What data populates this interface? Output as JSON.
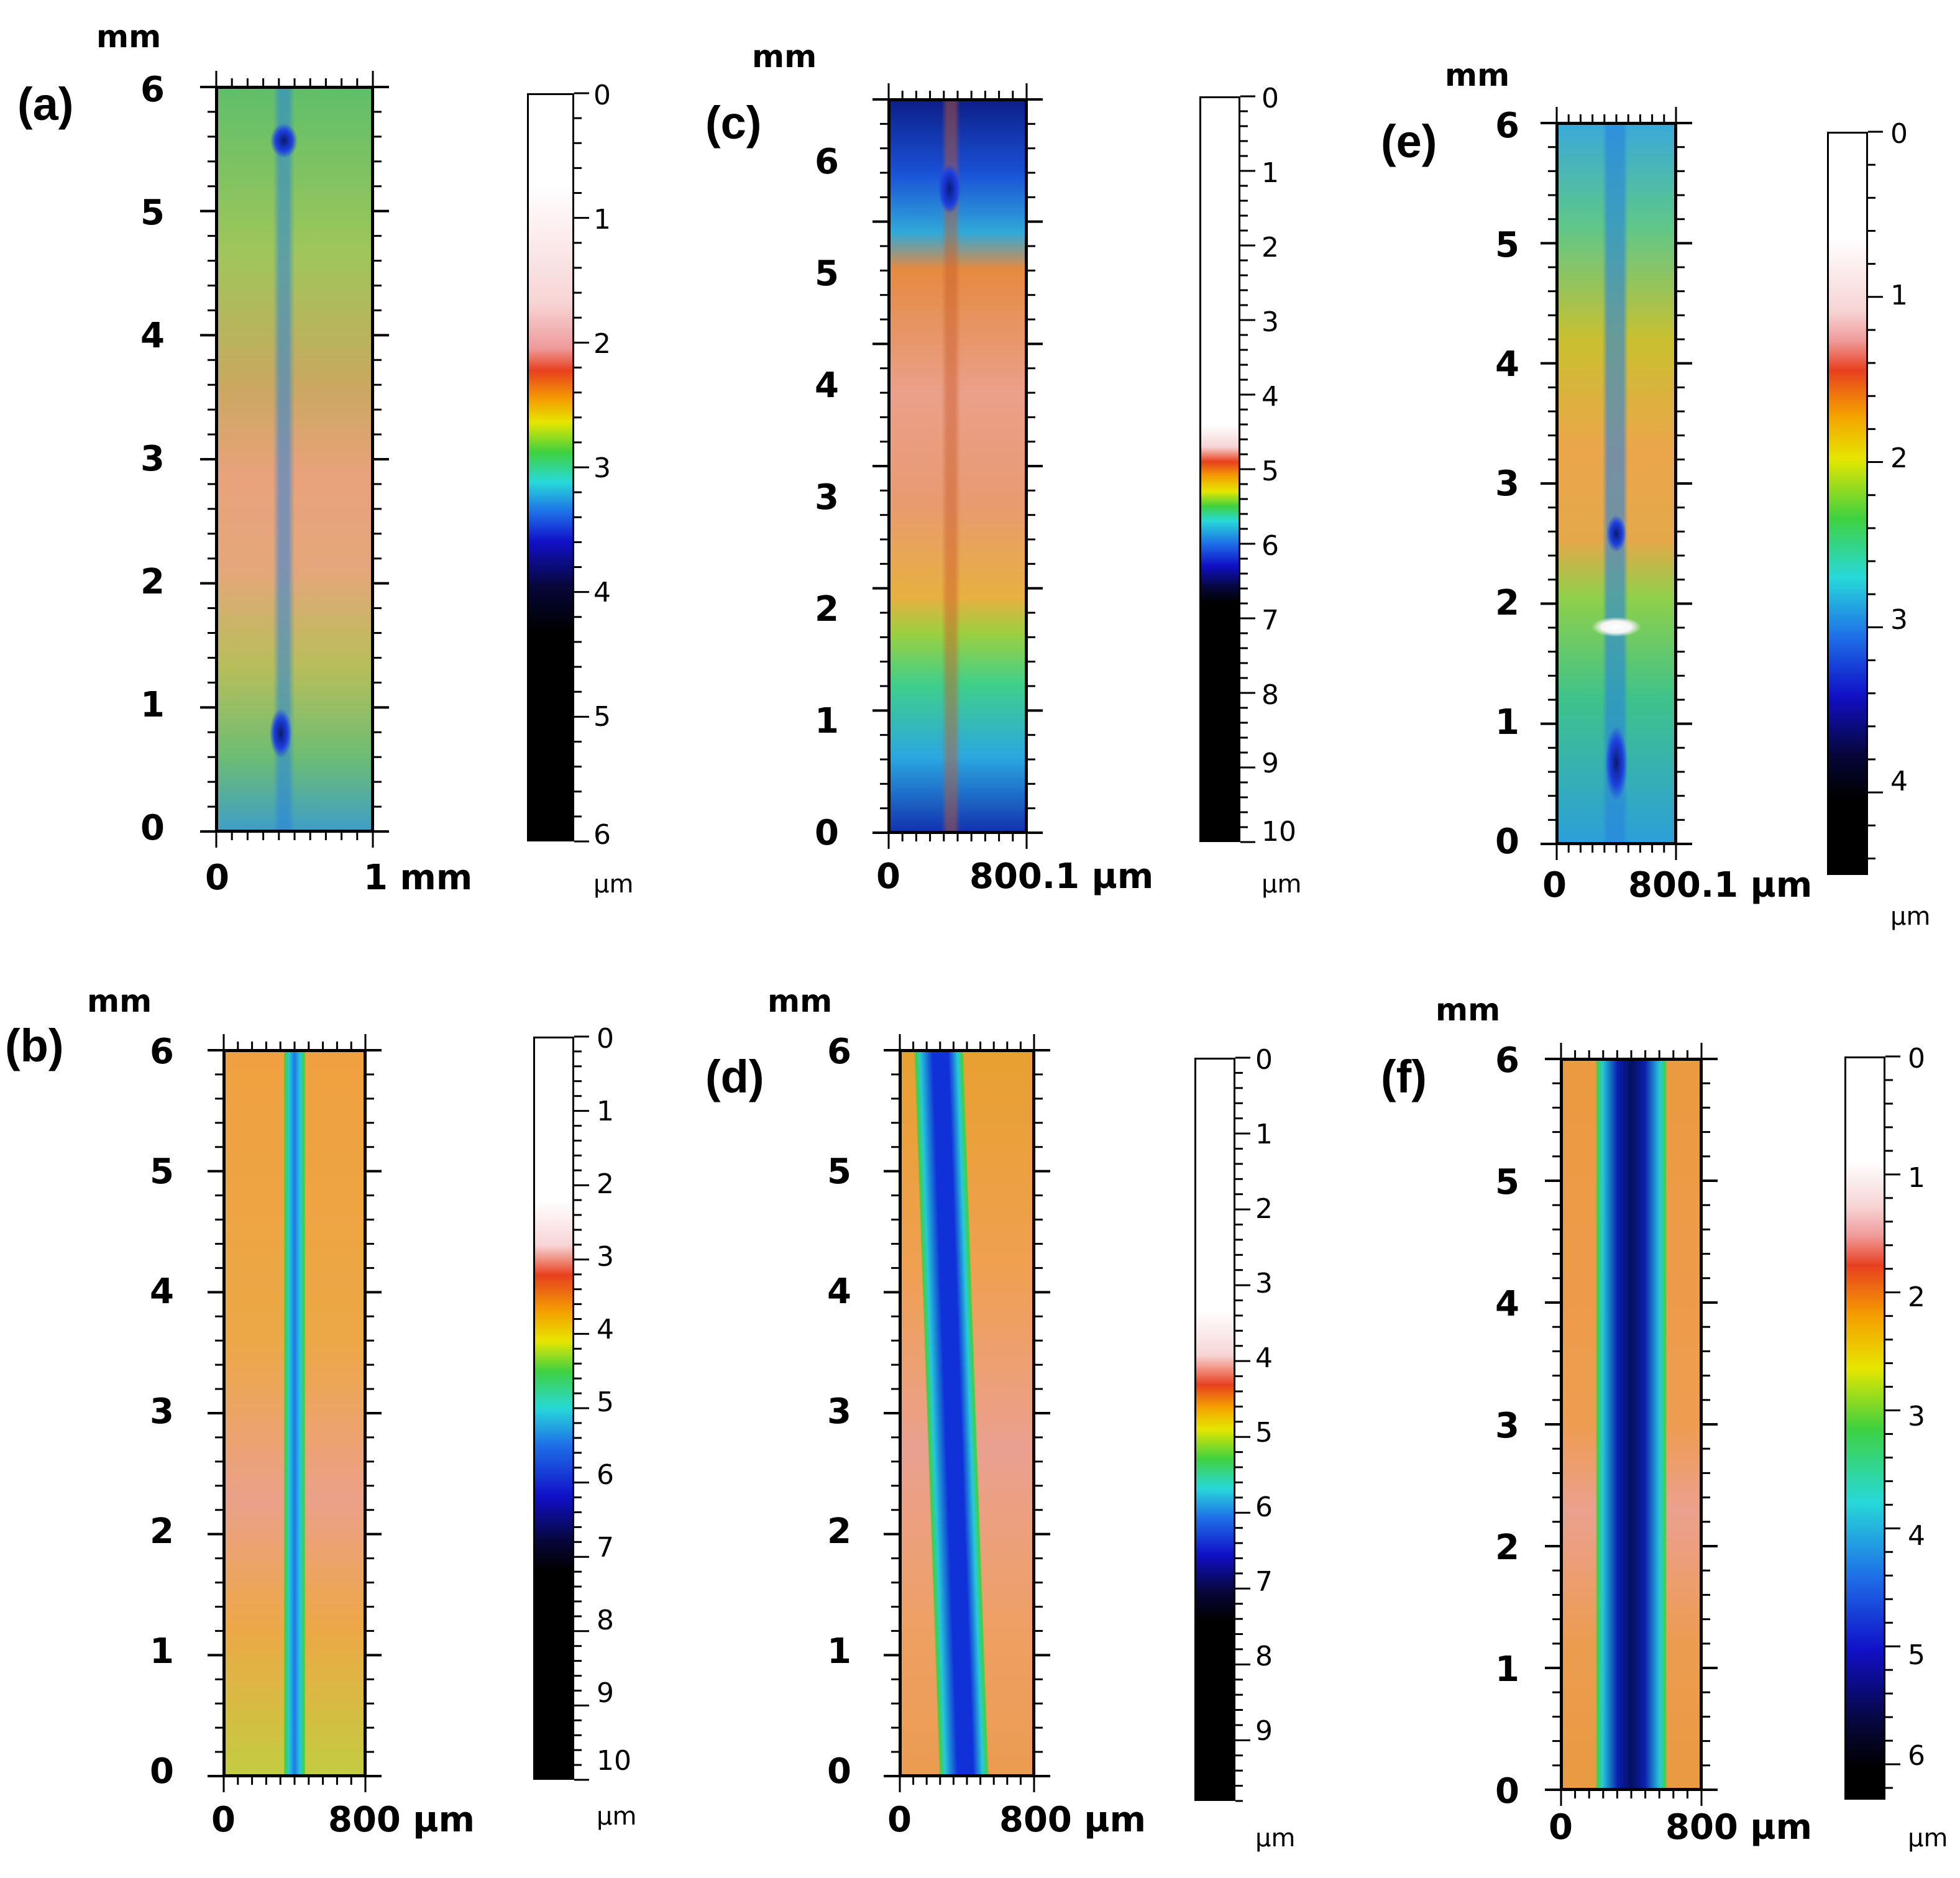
{
  "figure": {
    "panels": [
      {
        "label": "(a)",
        "y_unit": "mm",
        "y_ticks": [
          "6",
          "5",
          "4",
          "3",
          "2",
          "1",
          "0"
        ],
        "x_ticks": [
          "0",
          "1 mm"
        ],
        "colorbar_ticks": [
          "0",
          "1",
          "2",
          "3",
          "4",
          "5",
          "6"
        ],
        "colorbar_unit": "µm"
      },
      {
        "label": "(b)",
        "y_unit": "mm",
        "y_ticks": [
          "6",
          "5",
          "4",
          "3",
          "2",
          "1",
          "0"
        ],
        "x_ticks": [
          "0",
          "800 µm"
        ],
        "colorbar_ticks": [
          "0",
          "1",
          "2",
          "3",
          "4",
          "5",
          "6",
          "7",
          "8",
          "9",
          "10"
        ],
        "colorbar_unit": "µm"
      },
      {
        "label": "(c)",
        "y_unit": "mm",
        "y_ticks": [
          "6",
          "5",
          "4",
          "3",
          "2",
          "1",
          "0"
        ],
        "x_ticks": [
          "0",
          "800.1 µm"
        ],
        "colorbar_ticks": [
          "0",
          "1",
          "2",
          "3",
          "4",
          "5",
          "6",
          "7",
          "8",
          "9",
          "10"
        ],
        "colorbar_unit": "µm"
      },
      {
        "label": "(d)",
        "y_unit": "mm",
        "y_ticks": [
          "6",
          "5",
          "4",
          "3",
          "2",
          "1",
          "0"
        ],
        "x_ticks": [
          "0",
          "800 µm"
        ],
        "colorbar_ticks": [
          "0",
          "1",
          "2",
          "3",
          "4",
          "5",
          "6",
          "7",
          "8",
          "9"
        ],
        "colorbar_unit": "µm"
      },
      {
        "label": "(e)",
        "y_unit": "mm",
        "y_ticks": [
          "6",
          "5",
          "4",
          "3",
          "2",
          "1",
          "0"
        ],
        "x_ticks": [
          "0",
          "800.1 µm"
        ],
        "colorbar_ticks": [
          "0",
          "1",
          "2",
          "3",
          "4"
        ],
        "colorbar_unit": "µm"
      },
      {
        "label": "(f)",
        "y_unit": "mm",
        "y_ticks": [
          "6",
          "5",
          "4",
          "3",
          "2",
          "1",
          "0"
        ],
        "x_ticks": [
          "0",
          "800 µm"
        ],
        "colorbar_ticks": [
          "0",
          "1",
          "2",
          "3",
          "4",
          "5",
          "6"
        ],
        "colorbar_unit": "µm"
      }
    ]
  }
}
